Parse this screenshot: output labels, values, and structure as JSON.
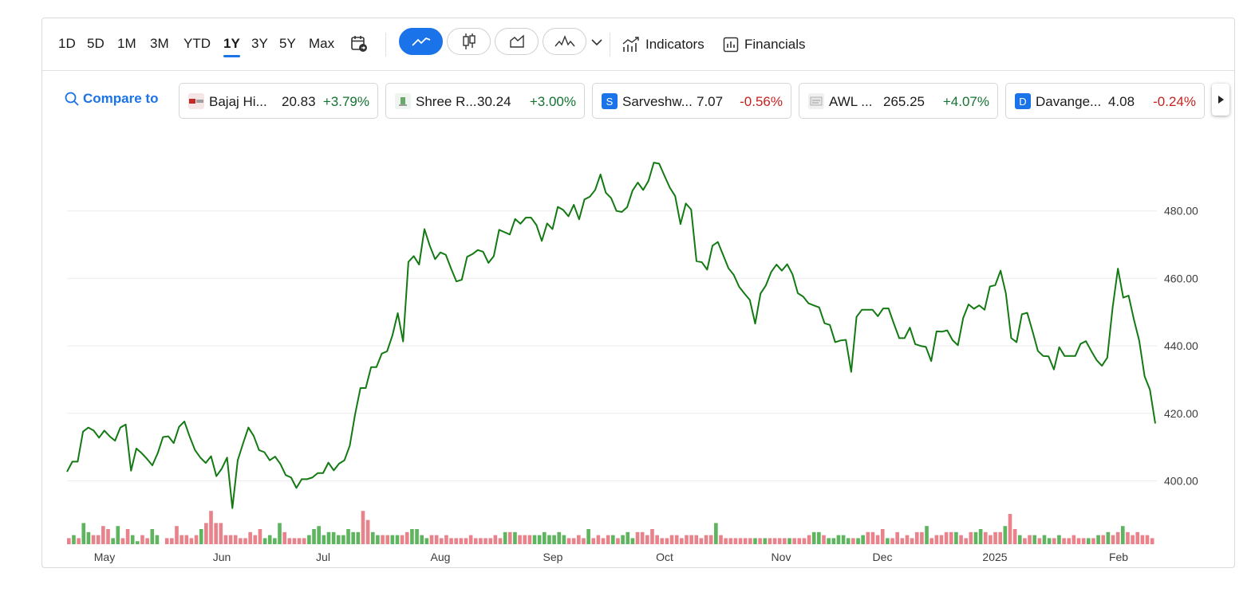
{
  "toolbar": {
    "ranges": [
      {
        "label": "1D",
        "active": false
      },
      {
        "label": "5D",
        "active": false
      },
      {
        "label": "1M",
        "active": false
      },
      {
        "label": "3M",
        "active": false
      },
      {
        "label": "YTD",
        "active": false
      },
      {
        "label": "1Y",
        "active": true
      },
      {
        "label": "3Y",
        "active": false
      },
      {
        "label": "5Y",
        "active": false
      },
      {
        "label": "Max",
        "active": false
      }
    ],
    "chart_types": [
      "line-chart-icon",
      "candlestick-icon",
      "area-chart-icon",
      "indicator-wave-icon"
    ],
    "indicators_label": "Indicators",
    "financials_label": "Financials"
  },
  "compare": {
    "label": "Compare to",
    "chips": [
      {
        "name": "Bajaj Hi...",
        "price": "20.83",
        "change": "+3.79%",
        "direction": "up",
        "logo_letter": "",
        "logo_color": "#e0e0e0"
      },
      {
        "name": "Shree R...",
        "price": "30.24",
        "change": "+3.00%",
        "direction": "up",
        "logo_letter": "",
        "logo_color": "#e8f2e8"
      },
      {
        "name": "Sarveshw...",
        "price": "7.07",
        "change": "-0.56%",
        "direction": "down",
        "logo_letter": "S",
        "logo_color": "#1a73e8"
      },
      {
        "name": "AWL ...",
        "price": "265.25",
        "change": "+4.07%",
        "direction": "up",
        "logo_letter": "",
        "logo_color": "#eeeeee"
      },
      {
        "name": "Davange...",
        "price": "4.08",
        "change": "-0.24%",
        "direction": "down",
        "logo_letter": "D",
        "logo_color": "#1a73e8"
      }
    ]
  },
  "colors": {
    "accent": "#1a73e8",
    "line": "#137a13",
    "volume_up": "#5fb55f",
    "volume_down": "#e8838c",
    "positive": "#137333",
    "negative": "#c5221f"
  },
  "chart_data": {
    "type": "line",
    "ylim": [
      385,
      500
    ],
    "y_ticks": [
      "400.00",
      "420.00",
      "440.00",
      "460.00",
      "480.00"
    ],
    "x_ticks": [
      "May",
      "Jun",
      "Jul",
      "Aug",
      "Sep",
      "Oct",
      "Nov",
      "Dec",
      "2025",
      "Feb"
    ],
    "grid": true,
    "series": [
      {
        "values": [
          402.7,
          405.7,
          405.7,
          414.6,
          415.8,
          414.9,
          412.8,
          414.9,
          413.2,
          411.9,
          415.8,
          416.7,
          403.0,
          409.6,
          408.2,
          406.5,
          404.6,
          408.2,
          413.0,
          413.2,
          411.2,
          416.0,
          417.6,
          413.1,
          409.1,
          406.9,
          405.3,
          407.3,
          401.4,
          403.6,
          406.9,
          391.9,
          406.1,
          411.1,
          415.8,
          413.3,
          409.1,
          408.5,
          406.1,
          407.2,
          405.0,
          401.7,
          401.0,
          397.9,
          400.5,
          400.5,
          401.0,
          402.3,
          402.3,
          405.4,
          403.1,
          405.1,
          406.1,
          410.4,
          419.7,
          427.5,
          427.5,
          433.7,
          433.7,
          437.7,
          438.4,
          443.1,
          449.7,
          441.3,
          464.9,
          466.6,
          464.1,
          474.6,
          469.7,
          465.7,
          467.7,
          467.0,
          462.9,
          459.1,
          459.6,
          466.4,
          467.2,
          468.4,
          467.9,
          464.6,
          466.6,
          474.4,
          473.7,
          473.0,
          477.6,
          476.2,
          478.0,
          478.0,
          475.8,
          471.1,
          476.3,
          474.6,
          481.2,
          480.3,
          478.4,
          481.8,
          477.5,
          483.4,
          484.2,
          486.2,
          490.8,
          485.4,
          483.8,
          480.0,
          479.7,
          481.1,
          486.0,
          488.4,
          486.2,
          488.9,
          494.3,
          494.0,
          490.4,
          486.9,
          484.4,
          476.1,
          482.2,
          480.4,
          465.1,
          464.8,
          462.6,
          469.7,
          470.8,
          466.9,
          463.0,
          461.0,
          457.5,
          455.5,
          453.6,
          446.6,
          455.5,
          457.9,
          461.9,
          464.1,
          462.3,
          464.2,
          461.2,
          455.6,
          454.6,
          452.6,
          452.0,
          451.4,
          446.7,
          446.2,
          441.1,
          441.6,
          441.8,
          432.3,
          448.6,
          450.7,
          450.7,
          450.7,
          448.8,
          451.1,
          451.1,
          446.6,
          442.3,
          442.3,
          445.4,
          440.5,
          440.0,
          439.7,
          435.5,
          444.3,
          444.2,
          444.6,
          441.7,
          440.2,
          448.3,
          452.3,
          451.0,
          452.0,
          450.7,
          457.6,
          458.0,
          462.3,
          455.5,
          442.3,
          441.1,
          449.4,
          449.8,
          444.3,
          438.5,
          437.0,
          436.9,
          433.0,
          439.6,
          437.0,
          437.0,
          437.0,
          440.6,
          441.4,
          438.5,
          435.8,
          434.1,
          436.5,
          451.3,
          462.9,
          454.3,
          454.9,
          447.8,
          441.5,
          431.0,
          427.0,
          417.0
        ]
      }
    ],
    "volume": [
      {
        "v": 2,
        "up": false
      },
      {
        "v": 3,
        "up": true
      },
      {
        "v": 2,
        "up": false
      },
      {
        "v": 7,
        "up": true
      },
      {
        "v": 4,
        "up": true
      },
      {
        "v": 3,
        "up": false
      },
      {
        "v": 3,
        "up": false
      },
      {
        "v": 6,
        "up": false
      },
      {
        "v": 5,
        "up": false
      },
      {
        "v": 2,
        "up": true
      },
      {
        "v": 6,
        "up": true
      },
      {
        "v": 2,
        "up": false
      },
      {
        "v": 5,
        "up": false
      },
      {
        "v": 3,
        "up": true
      },
      {
        "v": 1,
        "up": true
      },
      {
        "v": 3,
        "up": false
      },
      {
        "v": 2,
        "up": false
      },
      {
        "v": 5,
        "up": true
      },
      {
        "v": 3,
        "up": true
      },
      {
        "v": 0,
        "up": true
      },
      {
        "v": 2,
        "up": false
      },
      {
        "v": 2,
        "up": false
      },
      {
        "v": 6,
        "up": false
      },
      {
        "v": 3,
        "up": false
      },
      {
        "v": 3,
        "up": false
      },
      {
        "v": 2,
        "up": false
      },
      {
        "v": 3,
        "up": false
      },
      {
        "v": 5,
        "up": true
      },
      {
        "v": 7,
        "up": false
      },
      {
        "v": 11,
        "up": false
      },
      {
        "v": 7,
        "up": false
      },
      {
        "v": 7,
        "up": false
      },
      {
        "v": 3,
        "up": false
      },
      {
        "v": 3,
        "up": false
      },
      {
        "v": 3,
        "up": false
      },
      {
        "v": 2,
        "up": false
      },
      {
        "v": 2,
        "up": false
      },
      {
        "v": 4,
        "up": false
      },
      {
        "v": 3,
        "up": false
      },
      {
        "v": 5,
        "up": false
      },
      {
        "v": 2,
        "up": true
      },
      {
        "v": 3,
        "up": true
      },
      {
        "v": 2,
        "up": true
      },
      {
        "v": 7,
        "up": true
      },
      {
        "v": 4,
        "up": false
      },
      {
        "v": 2,
        "up": false
      },
      {
        "v": 2,
        "up": false
      },
      {
        "v": 2,
        "up": false
      },
      {
        "v": 2,
        "up": false
      },
      {
        "v": 3,
        "up": true
      },
      {
        "v": 5,
        "up": true
      },
      {
        "v": 6,
        "up": true
      },
      {
        "v": 3,
        "up": true
      },
      {
        "v": 4,
        "up": true
      },
      {
        "v": 4,
        "up": true
      },
      {
        "v": 3,
        "up": true
      },
      {
        "v": 3,
        "up": true
      },
      {
        "v": 5,
        "up": true
      },
      {
        "v": 4,
        "up": true
      },
      {
        "v": 4,
        "up": true
      },
      {
        "v": 11,
        "up": false
      },
      {
        "v": 8,
        "up": false
      },
      {
        "v": 4,
        "up": true
      },
      {
        "v": 3,
        "up": true
      },
      {
        "v": 3,
        "up": false
      },
      {
        "v": 3,
        "up": false
      },
      {
        "v": 3,
        "up": true
      },
      {
        "v": 3,
        "up": true
      },
      {
        "v": 3,
        "up": false
      },
      {
        "v": 4,
        "up": false
      },
      {
        "v": 5,
        "up": true
      },
      {
        "v": 5,
        "up": true
      },
      {
        "v": 3,
        "up": true
      },
      {
        "v": 2,
        "up": true
      },
      {
        "v": 3,
        "up": false
      },
      {
        "v": 3,
        "up": false
      },
      {
        "v": 2,
        "up": false
      },
      {
        "v": 3,
        "up": false
      },
      {
        "v": 2,
        "up": false
      },
      {
        "v": 2,
        "up": false
      },
      {
        "v": 2,
        "up": false
      },
      {
        "v": 2,
        "up": false
      },
      {
        "v": 3,
        "up": false
      },
      {
        "v": 2,
        "up": false
      },
      {
        "v": 2,
        "up": false
      },
      {
        "v": 2,
        "up": false
      },
      {
        "v": 2,
        "up": false
      },
      {
        "v": 3,
        "up": false
      },
      {
        "v": 2,
        "up": false
      },
      {
        "v": 4,
        "up": true
      },
      {
        "v": 4,
        "up": false
      },
      {
        "v": 4,
        "up": true
      },
      {
        "v": 3,
        "up": false
      },
      {
        "v": 3,
        "up": false
      },
      {
        "v": 3,
        "up": false
      },
      {
        "v": 3,
        "up": true
      },
      {
        "v": 3,
        "up": true
      },
      {
        "v": 4,
        "up": true
      },
      {
        "v": 3,
        "up": true
      },
      {
        "v": 3,
        "up": true
      },
      {
        "v": 4,
        "up": true
      },
      {
        "v": 3,
        "up": true
      },
      {
        "v": 2,
        "up": false
      },
      {
        "v": 2,
        "up": false
      },
      {
        "v": 3,
        "up": false
      },
      {
        "v": 2,
        "up": false
      },
      {
        "v": 5,
        "up": true
      },
      {
        "v": 2,
        "up": false
      },
      {
        "v": 3,
        "up": false
      },
      {
        "v": 2,
        "up": false
      },
      {
        "v": 3,
        "up": false
      },
      {
        "v": 3,
        "up": true
      },
      {
        "v": 2,
        "up": false
      },
      {
        "v": 3,
        "up": true
      },
      {
        "v": 4,
        "up": true
      },
      {
        "v": 2,
        "up": true
      },
      {
        "v": 4,
        "up": false
      },
      {
        "v": 4,
        "up": false
      },
      {
        "v": 3,
        "up": false
      },
      {
        "v": 5,
        "up": false
      },
      {
        "v": 3,
        "up": false
      },
      {
        "v": 2,
        "up": false
      },
      {
        "v": 2,
        "up": false
      },
      {
        "v": 3,
        "up": false
      },
      {
        "v": 3,
        "up": false
      },
      {
        "v": 2,
        "up": false
      },
      {
        "v": 3,
        "up": false
      },
      {
        "v": 3,
        "up": false
      },
      {
        "v": 3,
        "up": false
      },
      {
        "v": 2,
        "up": false
      },
      {
        "v": 3,
        "up": false
      },
      {
        "v": 3,
        "up": false
      },
      {
        "v": 7,
        "up": true
      },
      {
        "v": 3,
        "up": false
      },
      {
        "v": 2,
        "up": false
      },
      {
        "v": 2,
        "up": false
      },
      {
        "v": 2,
        "up": false
      },
      {
        "v": 2,
        "up": false
      },
      {
        "v": 2,
        "up": false
      },
      {
        "v": 2,
        "up": false
      },
      {
        "v": 2,
        "up": true
      },
      {
        "v": 2,
        "up": false
      },
      {
        "v": 2,
        "up": true
      },
      {
        "v": 2,
        "up": false
      },
      {
        "v": 2,
        "up": false
      },
      {
        "v": 2,
        "up": false
      },
      {
        "v": 2,
        "up": false
      },
      {
        "v": 2,
        "up": true
      },
      {
        "v": 2,
        "up": false
      },
      {
        "v": 2,
        "up": false
      },
      {
        "v": 2,
        "up": false
      },
      {
        "v": 3,
        "up": false
      },
      {
        "v": 4,
        "up": true
      },
      {
        "v": 4,
        "up": true
      },
      {
        "v": 3,
        "up": false
      },
      {
        "v": 2,
        "up": true
      },
      {
        "v": 2,
        "up": true
      },
      {
        "v": 3,
        "up": true
      },
      {
        "v": 3,
        "up": true
      },
      {
        "v": 2,
        "up": true
      },
      {
        "v": 2,
        "up": false
      },
      {
        "v": 2,
        "up": true
      },
      {
        "v": 3,
        "up": true
      },
      {
        "v": 4,
        "up": false
      },
      {
        "v": 4,
        "up": false
      },
      {
        "v": 3,
        "up": false
      },
      {
        "v": 5,
        "up": false
      },
      {
        "v": 2,
        "up": true
      },
      {
        "v": 2,
        "up": false
      },
      {
        "v": 4,
        "up": false
      },
      {
        "v": 2,
        "up": false
      },
      {
        "v": 3,
        "up": false
      },
      {
        "v": 2,
        "up": false
      },
      {
        "v": 4,
        "up": false
      },
      {
        "v": 4,
        "up": false
      },
      {
        "v": 6,
        "up": true
      },
      {
        "v": 2,
        "up": false
      },
      {
        "v": 3,
        "up": false
      },
      {
        "v": 3,
        "up": false
      },
      {
        "v": 4,
        "up": false
      },
      {
        "v": 4,
        "up": false
      },
      {
        "v": 4,
        "up": true
      },
      {
        "v": 3,
        "up": false
      },
      {
        "v": 2,
        "up": false
      },
      {
        "v": 4,
        "up": false
      },
      {
        "v": 4,
        "up": true
      },
      {
        "v": 5,
        "up": true
      },
      {
        "v": 4,
        "up": false
      },
      {
        "v": 3,
        "up": false
      },
      {
        "v": 4,
        "up": false
      },
      {
        "v": 4,
        "up": false
      },
      {
        "v": 6,
        "up": true
      },
      {
        "v": 10,
        "up": false
      },
      {
        "v": 5,
        "up": false
      },
      {
        "v": 3,
        "up": true
      },
      {
        "v": 2,
        "up": false
      },
      {
        "v": 3,
        "up": false
      },
      {
        "v": 3,
        "up": true
      },
      {
        "v": 2,
        "up": false
      },
      {
        "v": 3,
        "up": true
      },
      {
        "v": 2,
        "up": true
      },
      {
        "v": 2,
        "up": false
      },
      {
        "v": 3,
        "up": true
      },
      {
        "v": 2,
        "up": false
      },
      {
        "v": 2,
        "up": false
      },
      {
        "v": 3,
        "up": false
      },
      {
        "v": 2,
        "up": false
      },
      {
        "v": 2,
        "up": false
      },
      {
        "v": 2,
        "up": true
      },
      {
        "v": 2,
        "up": false
      },
      {
        "v": 3,
        "up": true
      },
      {
        "v": 3,
        "up": false
      },
      {
        "v": 4,
        "up": true
      },
      {
        "v": 3,
        "up": false
      },
      {
        "v": 4,
        "up": false
      },
      {
        "v": 6,
        "up": true
      },
      {
        "v": 4,
        "up": false
      },
      {
        "v": 3,
        "up": false
      },
      {
        "v": 4,
        "up": false
      },
      {
        "v": 3,
        "up": false
      },
      {
        "v": 3,
        "up": false
      },
      {
        "v": 2,
        "up": false
      }
    ]
  }
}
